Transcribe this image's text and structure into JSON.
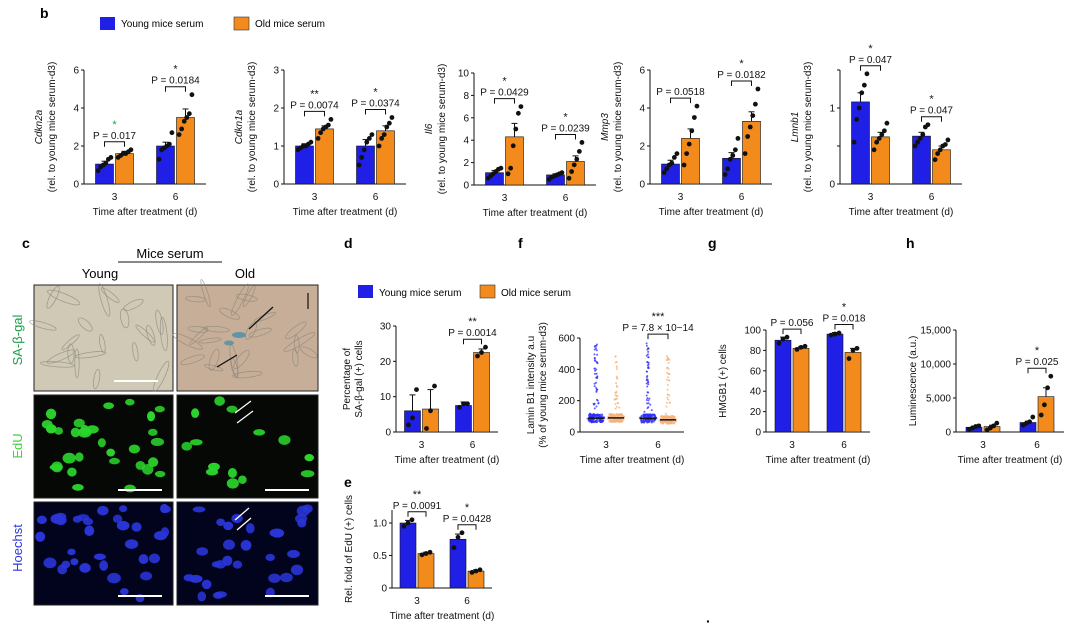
{
  "colors": {
    "young": "#1f1fe6",
    "old": "#f28a1c",
    "young_dot": "#2c2cf5",
    "old_dot": "#f5b27a",
    "axis": "#111111",
    "sa_young_bg": "#cfc9b6",
    "sa_old_bg": "#c6ae98",
    "edu_bg": "#050805",
    "edu_nuc": "#2cd62c",
    "hoechst_bg": "#02031c",
    "hoechst_nuc": "#2a35d8",
    "label_sa": "#1e9e4a",
    "label_edu": "#3fd23f",
    "label_hoechst": "#2b35e6",
    "sig_green": "#1e9e4a"
  },
  "panel_letters": {
    "b": "b",
    "c": "c",
    "d": "d",
    "e": "e",
    "f": "f",
    "g": "g",
    "h": "h"
  },
  "legend_top": {
    "young": "Young mice serum",
    "old": "Old mice serum"
  },
  "legend_mid": {
    "young": "Young mice serum",
    "old": "Old mice serum"
  },
  "xaxis_title": "Time after treatment (d)",
  "panel_c": {
    "header": "Mice serum",
    "col_young": "Young",
    "col_old": "Old",
    "row_sa": "SA-β-gal",
    "row_edu": "EdU",
    "row_hoechst": "Hoechst"
  },
  "footnote_mark": "·",
  "chart_data": [
    {
      "id": "b1",
      "type": "bar",
      "gene": "Cdkn2a",
      "ylabel": "(rel. to young mice serum-d3)",
      "categories": [
        "3",
        "6"
      ],
      "ylim": [
        0,
        6
      ],
      "yticks": [
        "0",
        "2",
        "4",
        "6"
      ],
      "series": [
        {
          "name": "Young mice serum",
          "values": [
            1.05,
            2.0
          ],
          "errors": [
            0.15,
            0.2
          ],
          "points": [
            [
              0.7,
              0.9,
              1.0,
              1.1,
              1.3,
              1.4
            ],
            [
              1.3,
              1.8,
              1.9,
              2.0,
              2.1,
              2.7
            ]
          ]
        },
        {
          "name": "Old mice serum",
          "values": [
            1.6,
            3.5
          ],
          "errors": [
            0.12,
            0.45
          ],
          "points": [
            [
              1.4,
              1.5,
              1.6,
              1.6,
              1.7,
              1.8
            ],
            [
              2.6,
              2.9,
              3.3,
              3.5,
              3.7,
              4.7
            ]
          ]
        }
      ],
      "stats": [
        {
          "cat": 0,
          "star": "*",
          "p": "P = 0.017",
          "green": true
        },
        {
          "cat": 1,
          "star": "*",
          "p": "P = 0.0184",
          "green": false
        }
      ]
    },
    {
      "id": "b2",
      "type": "bar",
      "gene": "Cdkn1a",
      "ylabel": "(rel. to young mice serum-d3)",
      "categories": [
        "3",
        "6"
      ],
      "ylim": [
        0,
        3
      ],
      "yticks": [
        "0",
        "1",
        "2",
        "3"
      ],
      "series": [
        {
          "name": "Young mice serum",
          "values": [
            1.0,
            1.0
          ],
          "errors": [
            0.06,
            0.17
          ],
          "points": [
            [
              0.9,
              0.95,
              1.0,
              1.0,
              1.05,
              1.1
            ],
            [
              0.5,
              0.7,
              0.9,
              1.1,
              1.2,
              1.3
            ]
          ]
        },
        {
          "name": "Old mice serum",
          "values": [
            1.45,
            1.4
          ],
          "errors": [
            0.08,
            0.13
          ],
          "points": [
            [
              1.2,
              1.35,
              1.45,
              1.5,
              1.55,
              1.7
            ],
            [
              1.0,
              1.2,
              1.3,
              1.5,
              1.6,
              1.75
            ]
          ]
        }
      ],
      "stats": [
        {
          "cat": 0,
          "star": "**",
          "p": "P = 0.0074",
          "green": false
        },
        {
          "cat": 1,
          "star": "*",
          "p": "P = 0.0374",
          "green": false
        }
      ]
    },
    {
      "id": "b3",
      "type": "bar",
      "gene": "Il6",
      "ylabel": "(rel. to young mice serum-d3)",
      "categories": [
        "3",
        "6"
      ],
      "ylim": [
        0,
        10
      ],
      "yticks": [
        "0",
        "2",
        "4",
        "6",
        "8",
        "10"
      ],
      "series": [
        {
          "name": "Young mice serum",
          "values": [
            1.1,
            0.9
          ],
          "errors": [
            0.2,
            0.1
          ],
          "points": [
            [
              0.6,
              0.8,
              1.0,
              1.2,
              1.4,
              1.5
            ],
            [
              0.5,
              0.7,
              0.8,
              0.9,
              1.0,
              1.1
            ]
          ]
        },
        {
          "name": "Old mice serum",
          "values": [
            4.3,
            2.1
          ],
          "errors": [
            1.2,
            0.5
          ],
          "points": [
            [
              1.0,
              1.5,
              3.5,
              5.0,
              6.4,
              7.0
            ],
            [
              0.6,
              1.2,
              1.8,
              2.3,
              3.0,
              3.8
            ]
          ]
        }
      ],
      "stats": [
        {
          "cat": 0,
          "star": "*",
          "p": "P = 0.0429",
          "green": false
        },
        {
          "cat": 1,
          "star": "*",
          "p": "P = 0.0239",
          "green": false
        }
      ]
    },
    {
      "id": "b4",
      "type": "bar",
      "gene": "Mmp3",
      "ylabel": "(rel. to young mice serum-d3)",
      "categories": [
        "3",
        "6"
      ],
      "ylim": [
        0,
        6
      ],
      "yticks": [
        "0",
        "2",
        "4",
        "6"
      ],
      "series": [
        {
          "name": "Young mice serum",
          "values": [
            1.05,
            1.35
          ],
          "errors": [
            0.2,
            0.3
          ],
          "points": [
            [
              0.6,
              0.8,
              1.0,
              1.1,
              1.4,
              1.6
            ],
            [
              0.5,
              0.8,
              1.3,
              1.5,
              1.8,
              2.4
            ]
          ]
        },
        {
          "name": "Old mice serum",
          "values": [
            2.4,
            3.3
          ],
          "errors": [
            0.5,
            0.5
          ],
          "points": [
            [
              1.0,
              1.6,
              2.1,
              2.8,
              3.5,
              4.1
            ],
            [
              1.6,
              2.5,
              3.0,
              3.6,
              4.2,
              5.0
            ]
          ]
        }
      ],
      "stats": [
        {
          "cat": 0,
          "star": "",
          "p": "P = 0.0518",
          "green": false
        },
        {
          "cat": 1,
          "star": "*",
          "p": "P = 0.0182",
          "green": false
        }
      ]
    },
    {
      "id": "b5",
      "type": "bar",
      "gene": "Lmnb1",
      "ylabel": "(rel. to young mice serum-d3)",
      "categories": [
        "3",
        "6"
      ],
      "ylim": [
        0,
        1.5
      ],
      "yticks": [
        "0",
        "",
        "1",
        ""
      ],
      "series": [
        {
          "name": "Young mice serum",
          "values": [
            1.08,
            0.63
          ],
          "errors": [
            0.12,
            0.05
          ],
          "points": [
            [
              0.55,
              0.85,
              1.0,
              1.2,
              1.3,
              1.45
            ],
            [
              0.5,
              0.55,
              0.6,
              0.65,
              0.75,
              0.78
            ]
          ]
        },
        {
          "name": "Old mice serum",
          "values": [
            0.62,
            0.45
          ],
          "errors": [
            0.06,
            0.05
          ],
          "points": [
            [
              0.45,
              0.55,
              0.6,
              0.65,
              0.7,
              0.8
            ],
            [
              0.32,
              0.4,
              0.45,
              0.5,
              0.52,
              0.58
            ]
          ]
        }
      ],
      "stats": [
        {
          "cat": 0,
          "star": "*",
          "p": "P = 0.047",
          "green": false
        },
        {
          "cat": 1,
          "star": "*",
          "p": "P = 0.047",
          "green": false
        }
      ]
    },
    {
      "id": "d",
      "type": "bar",
      "title": "",
      "ylabel": "Percentage of SA-β-gal (+) cells",
      "categories": [
        "3",
        "6"
      ],
      "ylim": [
        0,
        30
      ],
      "yticks": [
        "0",
        "10",
        "20",
        "30"
      ],
      "series": [
        {
          "name": "Young mice serum",
          "values": [
            6,
            7.5
          ],
          "errors": [
            4.5,
            1.0
          ],
          "points": [
            [
              2,
              4,
              12
            ],
            [
              7,
              8,
              8
            ]
          ]
        },
        {
          "name": "Old mice serum",
          "values": [
            6.5,
            22.5
          ],
          "errors": [
            5.5,
            1.0
          ],
          "points": [
            [
              1,
              6,
              13
            ],
            [
              21.5,
              22.5,
              24
            ]
          ]
        }
      ],
      "stats": [
        {
          "cat": 1,
          "star": "**",
          "p": "P = 0.0014",
          "green": false
        }
      ]
    },
    {
      "id": "e",
      "type": "bar",
      "ylabel": "Rel. fold of EdU (+) cells",
      "categories": [
        "3",
        "6"
      ],
      "ylim": [
        0,
        1.2
      ],
      "yticks": [
        "0",
        "0.5",
        "1.0"
      ],
      "series": [
        {
          "name": "Young mice serum",
          "values": [
            1.0,
            0.75
          ],
          "errors": [
            0.04,
            0.08
          ],
          "points": [
            [
              0.95,
              1.0,
              1.05
            ],
            [
              0.62,
              0.78,
              0.85
            ]
          ]
        },
        {
          "name": "Old mice serum",
          "values": [
            0.53,
            0.26
          ],
          "errors": [
            0.02,
            0.02
          ],
          "points": [
            [
              0.51,
              0.53,
              0.55
            ],
            [
              0.24,
              0.26,
              0.28
            ]
          ]
        }
      ],
      "stats": [
        {
          "cat": 0,
          "star": "**",
          "p": "P = 0.0091",
          "green": false
        },
        {
          "cat": 1,
          "star": "*",
          "p": "P = 0.0428",
          "green": false
        }
      ]
    },
    {
      "id": "f",
      "type": "scatter",
      "ylabel": "Lamin B1 intensity a.u (% of young mice serum-d3)",
      "categories": [
        "3",
        "6"
      ],
      "ylim": [
        0,
        680
      ],
      "yticks": [
        "0",
        "200",
        "400",
        "600"
      ],
      "medians": [
        [
          100,
          102
        ],
        [
          98,
          88
        ]
      ],
      "max_values": [
        [
          640,
          560
        ],
        [
          650,
          580
        ]
      ],
      "stats": [
        {
          "cat": 1,
          "star": "***",
          "p": "P = 7.8 × 10−14",
          "green": false
        }
      ]
    },
    {
      "id": "g",
      "type": "bar",
      "ylabel": "HMGB1 (+) cells",
      "categories": [
        "3",
        "6"
      ],
      "ylim": [
        0,
        100
      ],
      "yticks": [
        "0",
        "20",
        "40",
        "60",
        "80",
        "100"
      ],
      "series": [
        {
          "name": "Young mice serum",
          "values": [
            90,
            96
          ],
          "errors": [
            3,
            1.5
          ],
          "points": [
            [
              87,
              91,
              93
            ],
            [
              95,
              96,
              97
            ]
          ]
        },
        {
          "name": "Old mice serum",
          "values": [
            82,
            78
          ],
          "errors": [
            1.5,
            4
          ],
          "points": [
            [
              81,
              83,
              84
            ],
            [
              72,
              80,
              82
            ]
          ]
        }
      ],
      "stats": [
        {
          "cat": 0,
          "star": "",
          "p": "P = 0.056",
          "green": false
        },
        {
          "cat": 1,
          "star": "*",
          "p": "P = 0.018",
          "green": false
        }
      ]
    },
    {
      "id": "h",
      "type": "bar",
      "ylabel": "Luminescence (a.u.)",
      "categories": [
        "3",
        "6"
      ],
      "ylim": [
        0,
        15000
      ],
      "yticks": [
        "0",
        "5,000",
        "10,000",
        "15,000"
      ],
      "series": [
        {
          "name": "Young mice serum",
          "values": [
            700,
            1400
          ],
          "errors": [
            150,
            200
          ],
          "points": [
            [
              400,
              600,
              800,
              900
            ],
            [
              1000,
              1300,
              1500,
              2200
            ]
          ]
        },
        {
          "name": "Old mice serum",
          "values": [
            800,
            5200
          ],
          "errors": [
            200,
            1300
          ],
          "points": [
            [
              300,
              600,
              900,
              1300
            ],
            [
              2500,
              4000,
              6500,
              8200
            ]
          ]
        }
      ],
      "stats": [
        {
          "cat": 1,
          "star": "*",
          "p": "P = 0.025",
          "green": false
        }
      ]
    }
  ]
}
